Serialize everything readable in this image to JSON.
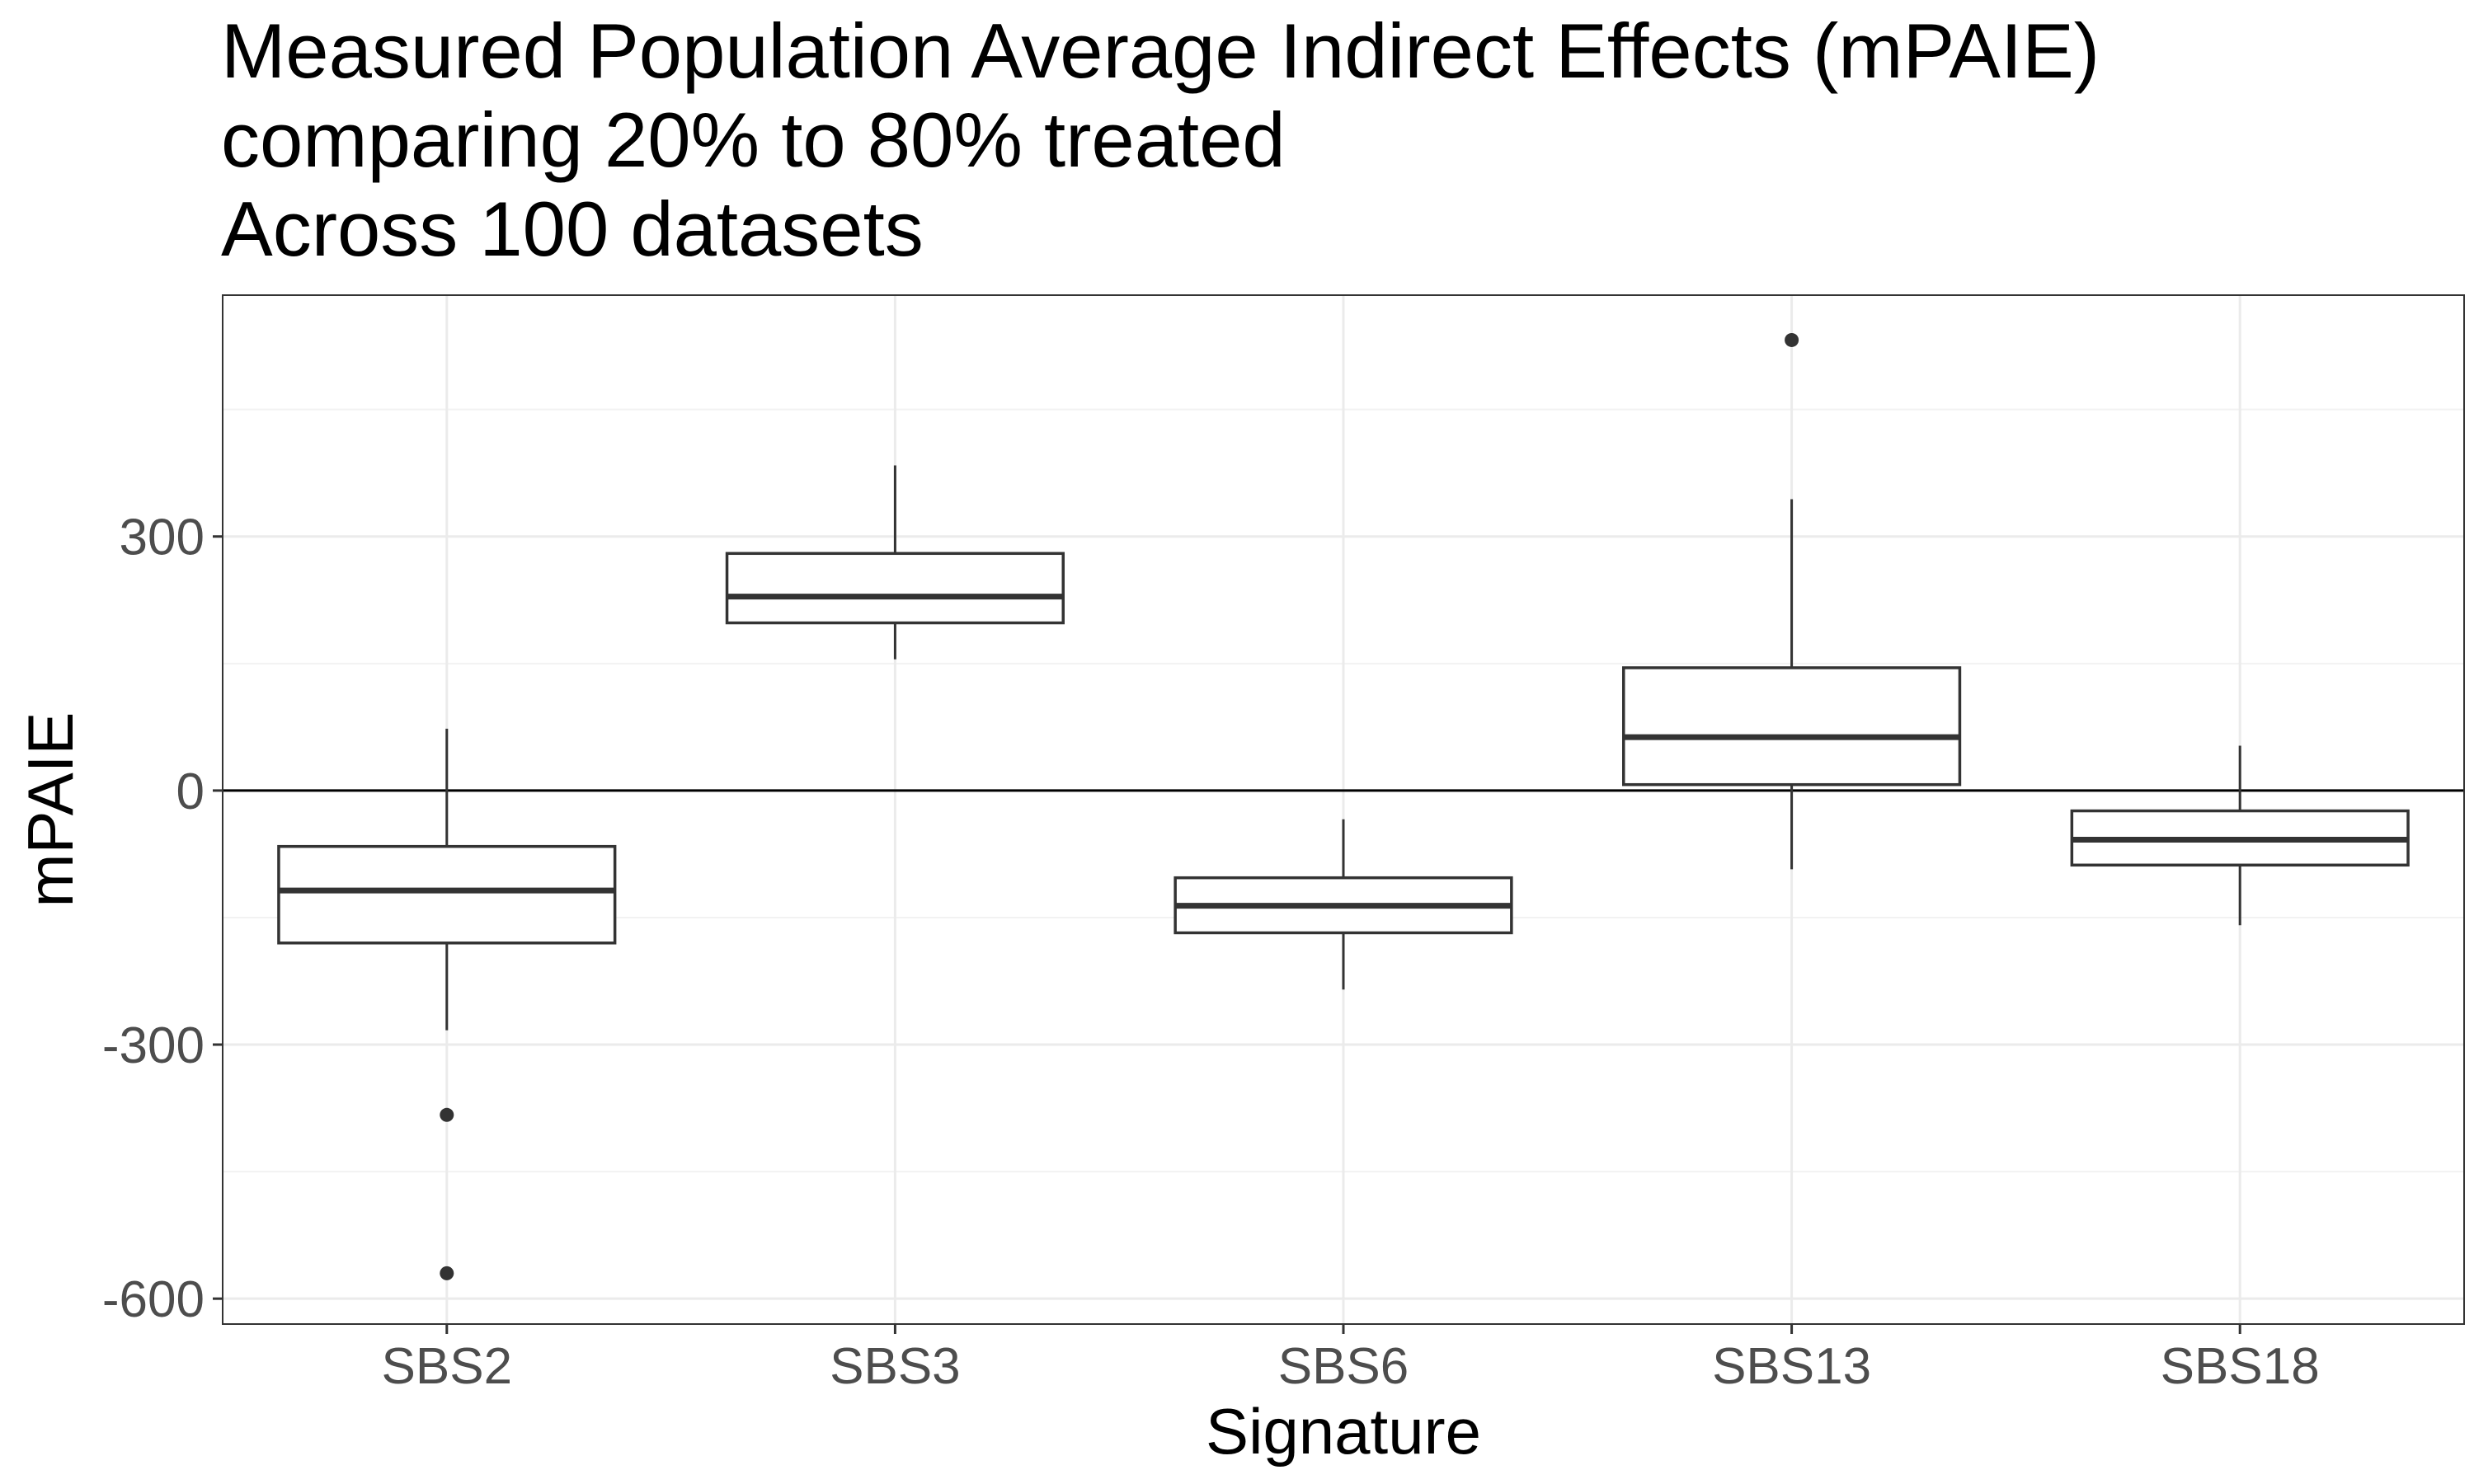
{
  "chart_data": {
    "type": "box",
    "title_lines": [
      "Measured Population Average Indirect Effects (mPAIE)",
      "comparing 20% to 80% treated",
      "Across 100 datasets"
    ],
    "xlabel": "Signature",
    "ylabel": "mPAIE",
    "categories": [
      "SBS2",
      "SBS3",
      "SBS6",
      "SBS13",
      "SBS18"
    ],
    "ylim": [
      -630,
      585
    ],
    "yticks": [
      {
        "value": 300,
        "label": "300"
      },
      {
        "value": 0,
        "label": "0"
      },
      {
        "value": -300,
        "label": "-300"
      },
      {
        "value": -600,
        "label": "-600"
      }
    ],
    "y_minor_gridlines": [
      450,
      150,
      -150,
      -450
    ],
    "reference_line": 0,
    "grid": true,
    "boxes": [
      {
        "category": "SBS2",
        "whisker_low": -283,
        "q1": -180,
        "median": -118,
        "q3": -66,
        "whisker_high": 73,
        "outliers": [
          -383,
          -570
        ]
      },
      {
        "category": "SBS3",
        "whisker_low": 155,
        "q1": 198,
        "median": 229,
        "q3": 280,
        "whisker_high": 384,
        "outliers": []
      },
      {
        "category": "SBS6",
        "whisker_low": -235,
        "q1": -168,
        "median": -136,
        "q3": -103,
        "whisker_high": -34,
        "outliers": []
      },
      {
        "category": "SBS13",
        "whisker_low": -93,
        "q1": 7,
        "median": 63,
        "q3": 145,
        "whisker_high": 344,
        "outliers": [
          532
        ]
      },
      {
        "category": "SBS18",
        "whisker_low": -159,
        "q1": -88,
        "median": -58,
        "q3": -24,
        "whisker_high": 53,
        "outliers": []
      }
    ],
    "colors": {
      "box_stroke": "#333333",
      "box_fill": "#ffffff",
      "grid_major": "#ebebeb",
      "grid_minor": "#f2f2f2",
      "reference_line": "#000000",
      "panel_border": "#333333",
      "tick_label": "#4d4d4d"
    }
  }
}
